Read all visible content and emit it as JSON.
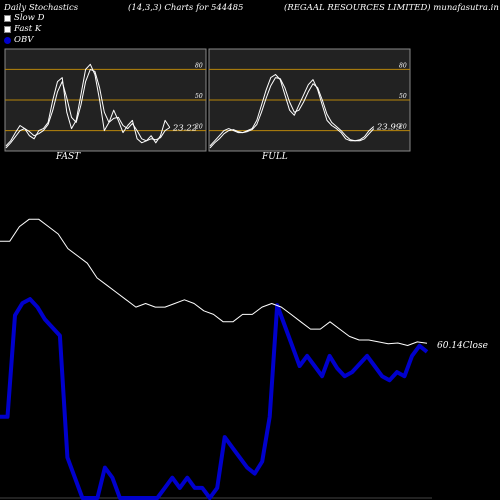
{
  "header": {
    "left": "Daily Stochastics",
    "center": "(14,3,3) Charts for 544485",
    "right": "(REGAAL  RESOURCES LIMITED) munafasutra.in"
  },
  "legend": [
    {
      "label": "Slow  D",
      "icon": "white-square"
    },
    {
      "label": "Fast K",
      "icon": "white-square"
    },
    {
      "label": "OBV",
      "icon": "blue-dot"
    }
  ],
  "colors": {
    "background": "#000000",
    "panel_background": "#222222",
    "grid_level": "#b8860b",
    "lines": "#ffffff",
    "obv": "#0000cc"
  },
  "chart_data": [
    {
      "type": "line",
      "name": "FAST",
      "title": "FAST",
      "ylim": [
        0,
        100
      ],
      "levels": [
        {
          "value": 80,
          "label": "80"
        },
        {
          "value": 50,
          "label": "50"
        },
        {
          "value": 20,
          "label": "20"
        }
      ],
      "last_value_label": "23.22",
      "series": [
        {
          "values": [
            5,
            10,
            18,
            25,
            22,
            15,
            12,
            20,
            22,
            28,
            50,
            68,
            72,
            38,
            22,
            30,
            55,
            80,
            85,
            75,
            50,
            20,
            28,
            40,
            30,
            18,
            25,
            30,
            12,
            8,
            10,
            15,
            8,
            15,
            30,
            23
          ]
        },
        {
          "values": [
            3,
            8,
            14,
            20,
            22,
            19,
            15,
            17,
            20,
            26,
            40,
            58,
            68,
            52,
            33,
            28,
            45,
            68,
            80,
            78,
            62,
            38,
            28,
            32,
            33,
            25,
            22,
            27,
            20,
            12,
            10,
            12,
            11,
            13,
            20,
            23
          ]
        }
      ]
    },
    {
      "type": "line",
      "name": "FULL",
      "title": "FULL",
      "ylim": [
        0,
        100
      ],
      "levels": [
        {
          "value": 80,
          "label": "80"
        },
        {
          "value": 50,
          "label": "50"
        },
        {
          "value": 20,
          "label": "20"
        }
      ],
      "last_value_label": "23.99",
      "series": [
        {
          "values": [
            5,
            10,
            15,
            20,
            22,
            20,
            18,
            18,
            20,
            22,
            30,
            45,
            60,
            72,
            75,
            70,
            55,
            40,
            35,
            45,
            55,
            65,
            70,
            60,
            45,
            30,
            25,
            22,
            18,
            12,
            10,
            10,
            11,
            14,
            20,
            24
          ]
        },
        {
          "values": [
            3,
            8,
            12,
            17,
            20,
            21,
            19,
            18,
            19,
            21,
            26,
            38,
            52,
            64,
            72,
            71,
            62,
            48,
            38,
            40,
            48,
            58,
            66,
            62,
            50,
            36,
            28,
            24,
            20,
            15,
            11,
            10,
            10,
            12,
            17,
            22
          ]
        }
      ]
    },
    {
      "type": "line",
      "name": "price-obv",
      "last_value_label": "60.14",
      "label_suffix": "Close",
      "series": [
        {
          "name": "Close",
          "values": [
            88,
            88,
            92,
            94,
            94,
            92,
            90,
            86,
            84,
            82,
            78,
            76,
            74,
            72,
            70,
            71,
            70,
            70,
            71,
            72,
            71,
            69,
            68,
            66,
            66,
            68,
            68,
            70,
            71,
            70,
            68,
            66,
            64,
            64,
            66,
            64,
            62,
            61,
            61,
            60.5,
            60,
            60.2,
            59.5,
            60.5,
            60.14
          ]
        },
        {
          "name": "OBV",
          "values": [
            40,
            40,
            90,
            96,
            98,
            94,
            88,
            84,
            80,
            20,
            10,
            0,
            0,
            0,
            15,
            10,
            0,
            0,
            0,
            0,
            0,
            0,
            5,
            10,
            5,
            10,
            5,
            5,
            0,
            5,
            30,
            25,
            20,
            15,
            12,
            18,
            40,
            95,
            85,
            75,
            65,
            70,
            65,
            60,
            70,
            64,
            60,
            62,
            66,
            70,
            65,
            60,
            58,
            62,
            60,
            70,
            75,
            72
          ]
        }
      ]
    }
  ]
}
